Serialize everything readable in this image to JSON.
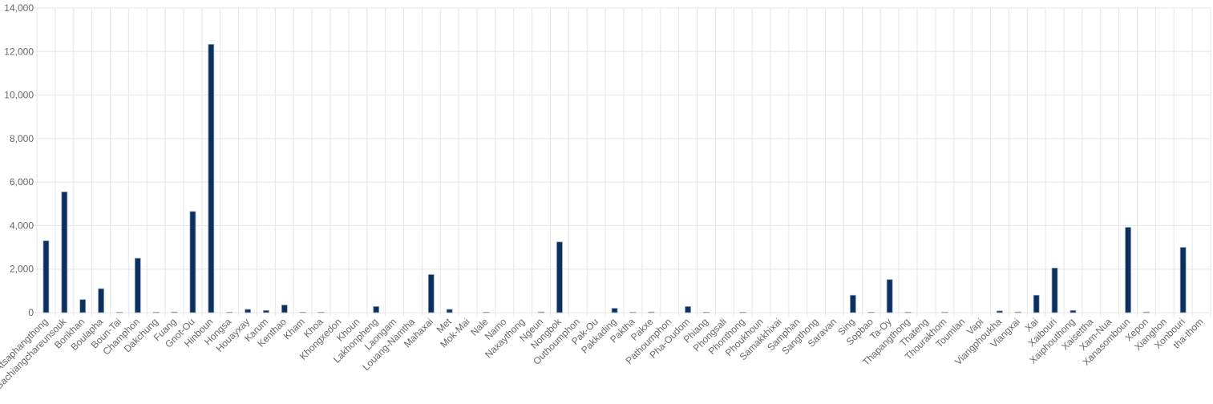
{
  "chart_data": {
    "type": "bar",
    "categories": [
      "Atsaphangthong",
      "Bachiangchareunsouk",
      "Borikhan",
      "Boulapha",
      "Boun-Tai",
      "Champhon",
      "Dakchung",
      "Fuang",
      "Gnot-Ou",
      "Hinboun",
      "Hongsa",
      "Houayxay",
      "Karum",
      "Kenthao",
      "Kham",
      "Khoa",
      "Khongxedon",
      "Khoun",
      "Lakhonpheng",
      "Laongam",
      "Louang-Namtha",
      "Mahaxai",
      "Met",
      "Mok-Mai",
      "Nale",
      "Namo",
      "Naxaythong",
      "Ngeun",
      "Nongbok",
      "Outhoumphon",
      "Pak-Ou",
      "Pakkading",
      "Paktha",
      "Pakxe",
      "Pathoumphon",
      "Pha-Oudom",
      "Phiang",
      "Phongsali",
      "Phonthong",
      "Phoukhoun",
      "Samakkhixai",
      "Samphan",
      "Sangthong",
      "Saravan",
      "Sing",
      "Sopbao",
      "Ta-Oy",
      "Thapangthong",
      "Thateng",
      "Thourakhom",
      "Toumlan",
      "Vapi",
      "Viangphoukha",
      "Viangxai",
      "Xai",
      "Xaibouri",
      "Xaiphouthong",
      "Xaisettha",
      "Xam-Nua",
      "Xanasomboun",
      "Xepon",
      "Xianghon",
      "Xonbouri",
      "tha-thom"
    ],
    "values": [
      3300,
      5550,
      600,
      1100,
      20,
      2500,
      20,
      30,
      4650,
      12330,
      20,
      150,
      100,
      350,
      20,
      20,
      0,
      0,
      280,
      0,
      0,
      1750,
      150,
      0,
      20,
      0,
      0,
      30,
      3250,
      0,
      0,
      200,
      20,
      30,
      0,
      280,
      20,
      0,
      20,
      0,
      0,
      0,
      0,
      0,
      800,
      20,
      1520,
      20,
      0,
      20,
      0,
      0,
      80,
      30,
      800,
      2050,
      100,
      0,
      0,
      3920,
      30,
      0,
      3000,
      0
    ],
    "color": "#0d2f5e",
    "ylim": [
      0,
      14000
    ],
    "yticks": [
      0,
      {
        "value": 2000,
        "label": "2,000"
      },
      {
        "value": 4000,
        "label": "4,000"
      },
      {
        "value": 6000,
        "label": "6,000"
      },
      {
        "value": 8000,
        "label": "8,000"
      },
      {
        "value": 10000,
        "label": "10,000"
      },
      {
        "value": 12000,
        "label": "12,000"
      },
      {
        "value": 14000,
        "label": "14,000"
      }
    ],
    "grid": true
  }
}
